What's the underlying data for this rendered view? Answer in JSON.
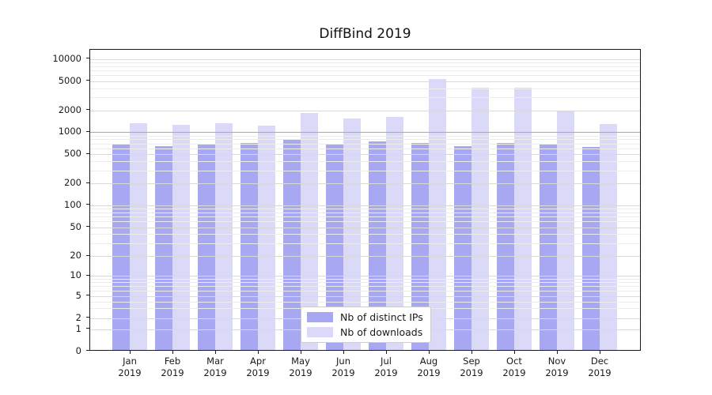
{
  "title": "DiffBind 2019",
  "colors": {
    "distinct_ips_bar": "#a8a8f2",
    "downloads_bar": "#dadaf8",
    "grid_major": "#d9d9d9",
    "grid_minor": "#ececec",
    "grid_emphasis": "#a9a9a9",
    "axis_and_text": "#1a1a1a",
    "legend_border": "#cccccc",
    "background": "#ffffff"
  },
  "legend": {
    "entries": [
      {
        "label": "Nb of distinct IPs"
      },
      {
        "label": "Nb of downloads"
      }
    ]
  },
  "chart_data": {
    "type": "bar",
    "title": "DiffBind 2019",
    "scale_y": "symlog",
    "grid": true,
    "legend_position": "lower center",
    "categories": [
      "Jan",
      "Feb",
      "Mar",
      "Apr",
      "May",
      "Jun",
      "Jul",
      "Aug",
      "Sep",
      "Oct",
      "Nov",
      "Dec"
    ],
    "x_tick_year": "2019",
    "x_tick_labels": [
      "Jan\n2019",
      "Feb\n2019",
      "Mar\n2019",
      "Apr\n2019",
      "May\n2019",
      "Jun\n2019",
      "Jul\n2019",
      "Aug\n2019",
      "Sep\n2019",
      "Oct\n2019",
      "Nov\n2019",
      "Dec\n2019"
    ],
    "series": [
      {
        "name": "Nb of distinct IPs",
        "color": "#a8a8f2",
        "values": [
          690,
          645,
          675,
          710,
          780,
          670,
          745,
          715,
          650,
          710,
          675,
          620
        ]
      },
      {
        "name": "Nb of downloads",
        "color": "#dadaf8",
        "values": [
          1310,
          1250,
          1320,
          1235,
          1845,
          1530,
          1625,
          5270,
          4010,
          4010,
          1930,
          1280
        ]
      }
    ],
    "y_tick_labels": [
      "0",
      "1",
      "2",
      "5",
      "10",
      "20",
      "50",
      "100",
      "200",
      "500",
      "1000",
      "2000",
      "5000",
      "10000"
    ],
    "y_ticks": [
      0,
      1,
      2,
      5,
      10,
      20,
      50,
      100,
      200,
      500,
      1000,
      2000,
      5000,
      10000
    ],
    "ylim": [
      0,
      13500
    ],
    "xlabel": "",
    "ylabel": ""
  }
}
